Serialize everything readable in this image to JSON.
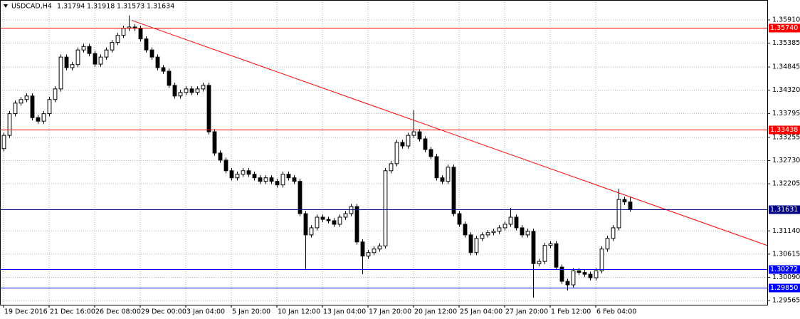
{
  "chart_data": {
    "type": "candlestick",
    "title": "USDCAD,H4",
    "open": [
      1.33,
      1.333,
      1.3379,
      1.3403,
      1.3411,
      1.3419,
      1.337,
      1.3362,
      1.3379,
      1.3411,
      1.3435,
      1.3507,
      1.3483,
      1.349,
      1.3523,
      1.3531,
      1.3515,
      1.3491,
      1.3507,
      1.3523,
      1.354,
      1.3556,
      1.3572,
      1.3575,
      1.3572,
      1.3548,
      1.3523,
      1.3507,
      1.3483,
      1.3475,
      1.3443,
      1.3419,
      1.3427,
      1.3435,
      1.3427,
      1.3435,
      1.3443,
      1.3338,
      1.329,
      1.3274,
      1.325,
      1.3234,
      1.3242,
      1.325,
      1.3242,
      1.3234,
      1.3226,
      1.3234,
      1.3226,
      1.3218,
      1.3242,
      1.3234,
      1.3226,
      1.3153,
      1.3105,
      1.3121,
      1.3145,
      1.314,
      1.3137,
      1.3129,
      1.3145,
      1.3153,
      1.3169,
      1.3089,
      1.3057,
      1.3065,
      1.3073,
      1.308,
      1.325,
      1.3266,
      1.3314,
      1.3306,
      1.333,
      1.3338,
      1.3322,
      1.3298,
      1.3282,
      1.3234,
      1.3226,
      1.3258,
      1.3153,
      1.3129,
      1.3105,
      1.3065,
      1.3097,
      1.3105,
      1.311,
      1.3113,
      1.3121,
      1.3129,
      1.3145,
      1.3121,
      1.3105,
      1.3113,
      1.304,
      1.3045,
      1.3081,
      1.3085,
      1.3032,
      1.3,
      1.2992,
      1.3024,
      1.302,
      1.3016,
      1.3008,
      1.3024,
      1.3073,
      1.3097,
      1.3121,
      1.3185,
      1.31794
    ],
    "high": [
      1.3336,
      1.3385,
      1.3409,
      1.3417,
      1.3425,
      1.3425,
      1.3376,
      1.3385,
      1.3417,
      1.3441,
      1.3513,
      1.3513,
      1.3496,
      1.3529,
      1.3537,
      1.3537,
      1.3521,
      1.3513,
      1.3529,
      1.3546,
      1.3562,
      1.3578,
      1.3601,
      1.3581,
      1.3578,
      1.3554,
      1.3529,
      1.3513,
      1.3489,
      1.3481,
      1.3449,
      1.3433,
      1.3441,
      1.3441,
      1.3441,
      1.3449,
      1.3449,
      1.3344,
      1.3296,
      1.328,
      1.3256,
      1.3248,
      1.3256,
      1.3256,
      1.3248,
      1.324,
      1.324,
      1.324,
      1.3232,
      1.3248,
      1.3248,
      1.324,
      1.3232,
      1.3159,
      1.3127,
      1.3151,
      1.3151,
      1.3146,
      1.3143,
      1.3151,
      1.3159,
      1.3175,
      1.3175,
      1.3095,
      1.3071,
      1.3079,
      1.3086,
      1.3256,
      1.3272,
      1.332,
      1.332,
      1.3336,
      1.3387,
      1.3344,
      1.3328,
      1.3304,
      1.3288,
      1.324,
      1.3264,
      1.3264,
      1.3159,
      1.3135,
      1.3111,
      1.3103,
      1.3111,
      1.3116,
      1.3119,
      1.3127,
      1.3135,
      1.3166,
      1.3151,
      1.3127,
      1.3119,
      1.3119,
      1.3051,
      1.3087,
      1.3091,
      1.3091,
      1.3038,
      1.3006,
      1.303,
      1.303,
      1.3026,
      1.3022,
      1.303,
      1.3079,
      1.3103,
      1.3127,
      1.3209,
      1.3191,
      1.31918
    ],
    "low": [
      1.3294,
      1.3324,
      1.3373,
      1.3397,
      1.3405,
      1.3364,
      1.3356,
      1.3356,
      1.3373,
      1.3405,
      1.3429,
      1.3477,
      1.3477,
      1.3484,
      1.3517,
      1.3509,
      1.3485,
      1.3485,
      1.3501,
      1.3517,
      1.3534,
      1.355,
      1.3566,
      1.3566,
      1.3542,
      1.3517,
      1.3501,
      1.3477,
      1.3469,
      1.3437,
      1.3413,
      1.3413,
      1.3421,
      1.3421,
      1.3421,
      1.3429,
      1.3332,
      1.3284,
      1.3268,
      1.3244,
      1.3228,
      1.3228,
      1.3236,
      1.3236,
      1.3228,
      1.322,
      1.322,
      1.322,
      1.3212,
      1.3212,
      1.3228,
      1.322,
      1.3147,
      1.3027,
      1.3099,
      1.3115,
      1.3134,
      1.3131,
      1.3123,
      1.3123,
      1.3139,
      1.3147,
      1.3083,
      1.3016,
      1.3051,
      1.3059,
      1.3067,
      1.3074,
      1.3244,
      1.326,
      1.33,
      1.33,
      1.3324,
      1.3316,
      1.3292,
      1.3276,
      1.3228,
      1.322,
      1.322,
      1.3147,
      1.3123,
      1.3099,
      1.3059,
      1.3059,
      1.3091,
      1.3099,
      1.3104,
      1.3107,
      1.3115,
      1.3123,
      1.3115,
      1.3099,
      1.3099,
      1.2963,
      1.3034,
      1.3039,
      1.3075,
      1.3026,
      1.2994,
      1.2979,
      1.2986,
      1.3014,
      1.301,
      1.3002,
      1.3002,
      1.3018,
      1.3067,
      1.3091,
      1.3115,
      1.3173,
      1.31573
    ],
    "close": [
      1.333,
      1.3379,
      1.3403,
      1.3411,
      1.3419,
      1.337,
      1.3362,
      1.3379,
      1.3411,
      1.3435,
      1.3507,
      1.3483,
      1.349,
      1.3523,
      1.3531,
      1.3515,
      1.3491,
      1.3507,
      1.3523,
      1.354,
      1.3556,
      1.3572,
      1.3575,
      1.3572,
      1.3548,
      1.3523,
      1.3507,
      1.3483,
      1.3475,
      1.3443,
      1.3419,
      1.3427,
      1.3435,
      1.3427,
      1.3435,
      1.3443,
      1.3338,
      1.329,
      1.3274,
      1.325,
      1.3234,
      1.3242,
      1.325,
      1.3242,
      1.3234,
      1.3226,
      1.3234,
      1.3226,
      1.3218,
      1.3242,
      1.3234,
      1.3226,
      1.3153,
      1.3105,
      1.3121,
      1.3145,
      1.314,
      1.3137,
      1.3129,
      1.3145,
      1.3153,
      1.3169,
      1.3089,
      1.3057,
      1.3065,
      1.3073,
      1.308,
      1.325,
      1.3266,
      1.3314,
      1.3306,
      1.333,
      1.3338,
      1.3322,
      1.3298,
      1.3282,
      1.3234,
      1.3226,
      1.3258,
      1.3153,
      1.3129,
      1.3105,
      1.3065,
      1.3097,
      1.3105,
      1.311,
      1.3113,
      1.3121,
      1.3129,
      1.3145,
      1.3121,
      1.3105,
      1.3113,
      1.304,
      1.3045,
      1.3081,
      1.3085,
      1.3032,
      1.3,
      1.2992,
      1.3024,
      1.302,
      1.3016,
      1.3008,
      1.3024,
      1.3073,
      1.3097,
      1.3121,
      1.3185,
      1.31794,
      1.31634
    ],
    "xlim": [
      -0.625,
      134.125
    ],
    "xticks": [
      {
        "value": 0,
        "label": "19 Dec 2016"
      },
      {
        "value": 8,
        "label": "21 Dec 16:00"
      },
      {
        "value": 16,
        "label": "26 Dec 08:00"
      },
      {
        "value": 24,
        "label": "29 Dec 00:00"
      },
      {
        "value": 32,
        "label": "3 Jan 04:00"
      },
      {
        "value": 40,
        "label": "5 Jan 20:00"
      },
      {
        "value": 48,
        "label": "10 Jan 12:00"
      },
      {
        "value": 56,
        "label": "13 Jan 04:00"
      },
      {
        "value": 64,
        "label": "17 Jan 20:00"
      },
      {
        "value": 72,
        "label": "20 Jan 12:00"
      },
      {
        "value": 80,
        "label": "25 Jan 04:00"
      },
      {
        "value": 88,
        "label": "27 Jan 20:00"
      },
      {
        "value": 96,
        "label": "1 Feb 12:00"
      },
      {
        "value": 104,
        "label": "6 Feb 04:00"
      }
    ],
    "ylim": [
      1.2947,
      1.3636
    ],
    "yticks": [
      {
        "value": 1.3591,
        "label": "1.35910"
      },
      {
        "value": 1.35385,
        "label": "1.35385"
      },
      {
        "value": 1.34845,
        "label": "1.34845"
      },
      {
        "value": 1.3432,
        "label": "1.34320"
      },
      {
        "value": 1.33795,
        "label": "1.33795"
      },
      {
        "value": 1.33255,
        "label": "1.33255"
      },
      {
        "value": 1.3273,
        "label": "1.32730"
      },
      {
        "value": 1.32205,
        "label": "1.32205"
      },
      {
        "value": 1.3114,
        "label": "1.31140"
      },
      {
        "value": 1.30615,
        "label": "1.30615"
      },
      {
        "value": 1.3009,
        "label": "1.30090"
      },
      {
        "value": 1.29565,
        "label": "1.29565"
      }
    ],
    "grid": true,
    "bull_color": "#ffffff",
    "bear_color": "#000000",
    "levels": [
      {
        "value": 1.3574,
        "label": "1.35740",
        "color": "#ff0000"
      },
      {
        "value": 1.33438,
        "label": "1.33438",
        "color": "#ff0000"
      },
      {
        "value": 1.31631,
        "label": "1.31631",
        "color": "#000080"
      },
      {
        "value": 1.30272,
        "label": "1.30272",
        "color": "#0000ff"
      },
      {
        "value": 1.2985,
        "label": "1.29850",
        "color": "#0000ff"
      }
    ],
    "trendline": {
      "x": [
        22.5,
        134.125
      ],
      "y": [
        1.359,
        1.3081
      ],
      "color": "#ff0000"
    }
  }
}
